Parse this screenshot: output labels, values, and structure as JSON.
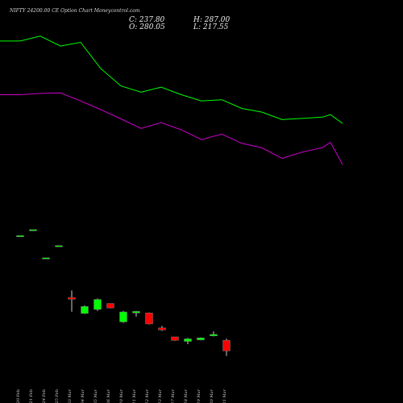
{
  "title": "NIFTY 24200.00 CE Option Chart Moneycontrol.com",
  "ohlc": {
    "C": "C: 237.80",
    "O": "O: 280.05",
    "H": "H: 287.00",
    "L": "L: 217.55"
  },
  "colors": {
    "background": "#000000",
    "up": "#00ff00",
    "down": "#ff0000",
    "upper_line": "#00ff00",
    "lower_line": "#cc00cc",
    "axis_text": "#cccccc"
  },
  "chart_data": {
    "type": "candlestick",
    "title": "NIFTY 24200.00 CE Option Chart Moneycontrol.com",
    "categories": [
      "20 Feb",
      "21 Feb",
      "24 Feb",
      "25 Feb",
      "03 Mar",
      "04 Mar",
      "05 Mar",
      "06 Mar",
      "10 Mar",
      "11 Mar",
      "12 Mar",
      "13 Mar",
      "17 Mar",
      "18 Mar",
      "19 Mar",
      "20 Mar",
      "21 Mar"
    ],
    "candles": [
      {
        "o": 700,
        "h": 700,
        "l": 700,
        "c": 700
      },
      {
        "o": 724,
        "h": 724,
        "l": 724,
        "c": 724
      },
      {
        "o": 611,
        "h": 611,
        "l": 611,
        "c": 611
      },
      {
        "o": 660,
        "h": 660,
        "l": 660,
        "c": 660
      },
      {
        "o": 452,
        "h": 480,
        "l": 395,
        "c": 445
      },
      {
        "o": 388,
        "h": 420,
        "l": 386,
        "c": 416
      },
      {
        "o": 404,
        "h": 448,
        "l": 398,
        "c": 444
      },
      {
        "o": 428,
        "h": 428,
        "l": 408,
        "c": 410
      },
      {
        "o": 354,
        "h": 398,
        "l": 350,
        "c": 394
      },
      {
        "o": 390,
        "h": 398,
        "l": 375,
        "c": 396
      },
      {
        "o": 390,
        "h": 392,
        "l": 344,
        "c": 346
      },
      {
        "o": 330,
        "h": 338,
        "l": 318,
        "c": 322
      },
      {
        "o": 294,
        "h": 294,
        "l": 278,
        "c": 280
      },
      {
        "o": 276,
        "h": 290,
        "l": 265,
        "c": 286
      },
      {
        "o": 282,
        "h": 292,
        "l": 280,
        "c": 290
      },
      {
        "o": 298,
        "h": 316,
        "l": 296,
        "c": 304
      },
      {
        "o": 280.05,
        "h": 287,
        "l": 217.55,
        "c": 237.8
      }
    ],
    "upper_line": [
      1480,
      1480,
      1500,
      1460,
      1475,
      1370,
      1300,
      1275,
      1295,
      1265,
      1240,
      1245,
      1210,
      1195,
      1165,
      1170,
      1175,
      1185,
      1150
    ],
    "lower_line": [
      1265,
      1265,
      1270,
      1272,
      1240,
      1205,
      1168,
      1130,
      1153,
      1124,
      1085,
      1107,
      1070,
      1052,
      1010,
      1035,
      1053,
      1074,
      985
    ],
    "ylim": [
      100,
      1580
    ]
  }
}
